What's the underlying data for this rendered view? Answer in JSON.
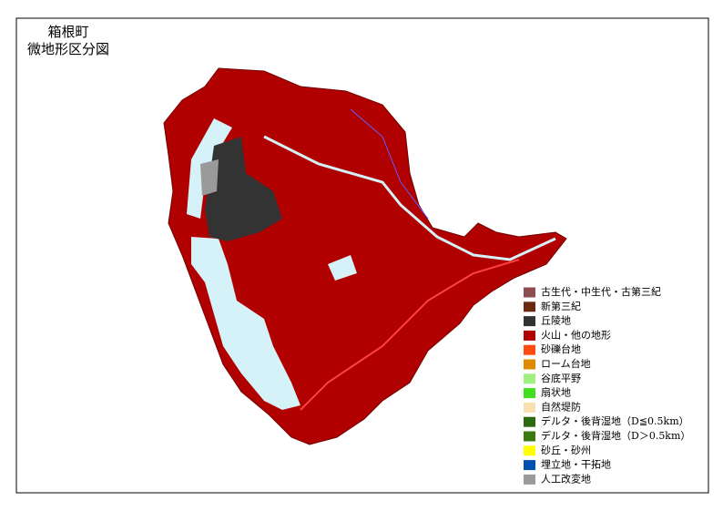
{
  "header": {
    "title_lines": [
      "箱根町",
      "微地形区分図"
    ]
  },
  "legend": {
    "items": [
      {
        "label": "古生代・中生代・古第三紀",
        "color": "#8e4e50"
      },
      {
        "label": "新第三紀",
        "color": "#6a2a10"
      },
      {
        "label": "丘陵地",
        "color": "#333333"
      },
      {
        "label": "火山・他の地形",
        "color": "#b00000"
      },
      {
        "label": "砂礫台地",
        "color": "#ff4a10"
      },
      {
        "label": "ローム台地",
        "color": "#e08a00"
      },
      {
        "label": "谷底平野",
        "color": "#a0f080"
      },
      {
        "label": "扇状地",
        "color": "#40e020"
      },
      {
        "label": "自然堤防",
        "color": "#f8e0b0"
      },
      {
        "label": "デルタ・後背湿地（D≦0.5km）",
        "color": "#2a6a10"
      },
      {
        "label": "デルタ・後背湿地（D＞0.5km）",
        "color": "#3a7a10"
      },
      {
        "label": "砂丘・砂州",
        "color": "#ffff00"
      },
      {
        "label": "埋立地・干拓地",
        "color": "#0050b0"
      },
      {
        "label": "人工改変地",
        "color": "#9a9a9a"
      }
    ]
  }
}
